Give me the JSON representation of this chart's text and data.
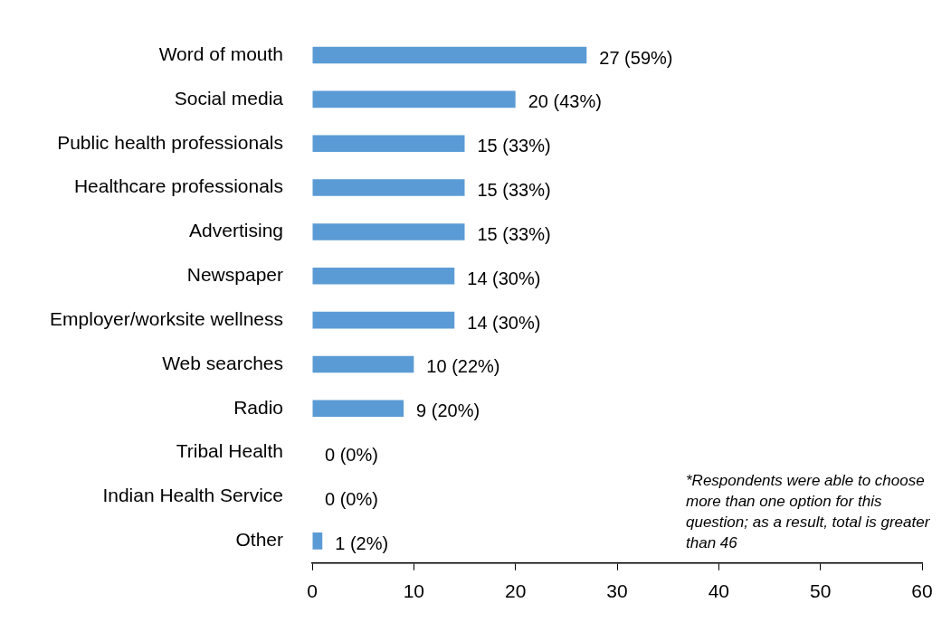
{
  "chart_data": {
    "type": "bar",
    "orientation": "horizontal",
    "categories": [
      "Word of mouth",
      "Social media",
      "Public health professionals",
      "Healthcare professionals",
      "Advertising",
      "Newspaper",
      "Employer/worksite wellness",
      "Web searches",
      "Radio",
      "Tribal Health",
      "Indian Health Service",
      "Other"
    ],
    "values": [
      27,
      20,
      15,
      15,
      15,
      14,
      14,
      10,
      9,
      0,
      0,
      1
    ],
    "value_labels": [
      "27 (59%)",
      "20 (43%)",
      "15 (33%)",
      "15 (33%)",
      "15 (33%)",
      "14 (30%)",
      "14 (30%)",
      "10 (22%)",
      "9 (20%)",
      "0 (0%)",
      "0 (0%)",
      "1 (2%)"
    ],
    "color": "#5b9bd5",
    "xlim": [
      0,
      60
    ],
    "xticks": [
      0,
      10,
      20,
      30,
      40,
      50,
      60
    ],
    "grid": false,
    "legend": false,
    "annotations": [
      "*Respondents were able to choose more than one option for this question; as a result, total is greater than 46"
    ]
  }
}
